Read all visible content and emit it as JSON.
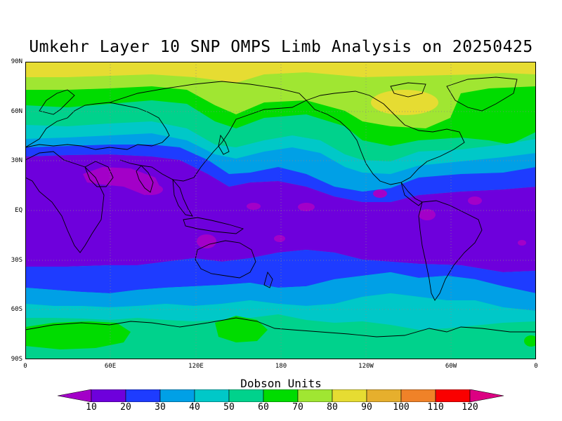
{
  "map": {
    "title": "Umkehr Layer 10 SNP OMPS Limb Analysis on 20250425",
    "lat_labels": [
      "90N",
      "60N",
      "30N",
      "EQ",
      "30S",
      "60S",
      "90S"
    ],
    "lon_labels": [
      "0",
      "60E",
      "120E",
      "180",
      "120W",
      "60W",
      "0"
    ],
    "projection": "cylindrical equidistant, 0 to 360 longitude",
    "gridlines": "dotted every 30 degrees",
    "features": "coastlines"
  },
  "colorbar": {
    "title": "Dobson Units",
    "tick_labels": [
      "10",
      "20",
      "30",
      "40",
      "50",
      "60",
      "70",
      "80",
      "90",
      "100",
      "110",
      "120"
    ],
    "colors": [
      "#a300c8",
      "#6e00dc",
      "#1e3cff",
      "#00a0e6",
      "#00c8c8",
      "#00d28c",
      "#00dc00",
      "#a0e632",
      "#e6dc32",
      "#e6af2d",
      "#f08228",
      "#fa0000",
      "#dc0082"
    ]
  }
}
